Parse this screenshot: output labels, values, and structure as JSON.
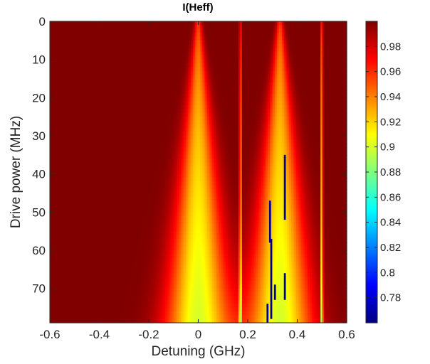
{
  "chart_data": {
    "type": "heatmap",
    "title": "I(Heff)",
    "xlabel": "Detuning (GHz)",
    "ylabel": "Drive power (MHz)",
    "xlim": [
      -0.6,
      0.6
    ],
    "ylim": [
      0,
      79
    ],
    "y_reversed": true,
    "x_ticks": [
      -0.6,
      -0.4,
      -0.2,
      0,
      0.2,
      0.4,
      0.6
    ],
    "x_tick_labels": [
      "-0.6",
      "-0.4",
      "-0.2",
      "0",
      "0.2",
      "0.4",
      "0.6"
    ],
    "y_ticks": [
      0,
      10,
      20,
      30,
      40,
      50,
      60,
      70
    ],
    "y_tick_labels": [
      "0",
      "10",
      "20",
      "30",
      "40",
      "50",
      "60",
      "70"
    ],
    "colormap": "jet",
    "clim": [
      0.76,
      1.0
    ],
    "colorbar_ticks": [
      0.78,
      0.8,
      0.82,
      0.84,
      0.86,
      0.88,
      0.9,
      0.92,
      0.94,
      0.96,
      0.98
    ],
    "colorbar_tick_labels": [
      "0.78",
      "0.8",
      "0.82",
      "0.84",
      "0.86",
      "0.88",
      "0.9",
      "0.92",
      "0.94",
      "0.96",
      "0.98"
    ],
    "grid": false,
    "resonances": [
      {
        "center_ghz": 0.0,
        "width_at_max_power_ghz": 0.26,
        "min_value": 0.9
      },
      {
        "center_ghz": 0.17,
        "width_at_max_power_ghz": 0.008,
        "min_value": 0.87
      },
      {
        "center_ghz": 0.33,
        "width_at_max_power_ghz": 0.26,
        "min_value": 0.9
      },
      {
        "center_ghz": 0.5,
        "width_at_max_power_ghz": 0.008,
        "min_value": 0.87
      }
    ],
    "low_value_segments": [
      {
        "x_ghz": 0.35,
        "y_from": 35,
        "y_to": 52,
        "value": 0.765
      },
      {
        "x_ghz": 0.29,
        "y_from": 47,
        "y_to": 58,
        "value": 0.765
      },
      {
        "x_ghz": 0.295,
        "y_from": 57,
        "y_to": 78,
        "value": 0.765
      },
      {
        "x_ghz": 0.28,
        "y_from": 74,
        "y_to": 79,
        "value": 0.765
      },
      {
        "x_ghz": 0.31,
        "y_from": 69,
        "y_to": 73,
        "value": 0.765
      },
      {
        "x_ghz": 0.35,
        "y_from": 66,
        "y_to": 73,
        "value": 0.765
      }
    ]
  }
}
